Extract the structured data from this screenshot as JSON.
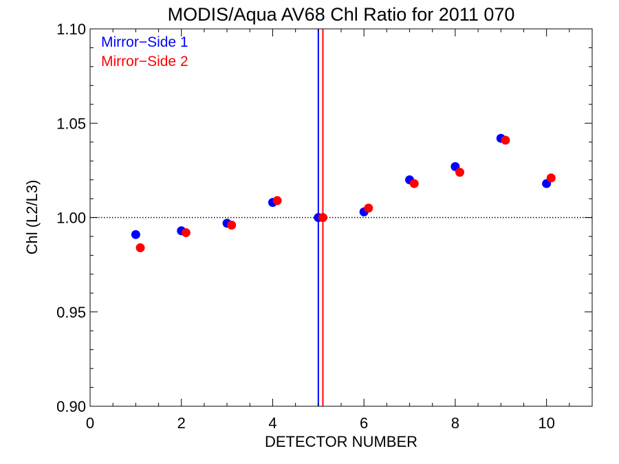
{
  "chart_data": {
    "type": "scatter",
    "title": "MODIS/Aqua AV68 Chl Ratio for 2011 070",
    "xlabel": "DETECTOR NUMBER",
    "ylabel": "Chl (L2/L3)",
    "xlim": [
      0,
      11
    ],
    "ylim": [
      0.9,
      1.1
    ],
    "xticks": [
      0,
      2,
      4,
      6,
      8,
      10
    ],
    "xtick_labels": [
      "0",
      "2",
      "4",
      "6",
      "8",
      "10"
    ],
    "yticks": [
      0.9,
      0.95,
      1.0,
      1.05,
      1.1
    ],
    "ytick_labels": [
      "0.90",
      "0.95",
      "1.00",
      "1.05",
      "1.10"
    ],
    "reference_line_y": 1.0,
    "legend_position": "top-left",
    "series": [
      {
        "name": "Mirror−Side 1",
        "color": "#0000ff",
        "vertical_line_x": 5.0,
        "points": [
          {
            "x": 1,
            "y": 0.991
          },
          {
            "x": 2,
            "y": 0.993
          },
          {
            "x": 3,
            "y": 0.997
          },
          {
            "x": 4,
            "y": 1.008
          },
          {
            "x": 5,
            "y": 1.0
          },
          {
            "x": 6,
            "y": 1.003
          },
          {
            "x": 7,
            "y": 1.02
          },
          {
            "x": 8,
            "y": 1.027
          },
          {
            "x": 9,
            "y": 1.042
          },
          {
            "x": 10,
            "y": 1.018
          }
        ]
      },
      {
        "name": "Mirror−Side 2",
        "color": "#ff0000",
        "vertical_line_x": 5.1,
        "points": [
          {
            "x": 1.1,
            "y": 0.984
          },
          {
            "x": 2.1,
            "y": 0.992
          },
          {
            "x": 3.1,
            "y": 0.996
          },
          {
            "x": 4.1,
            "y": 1.009
          },
          {
            "x": 5.1,
            "y": 1.0
          },
          {
            "x": 6.1,
            "y": 1.005
          },
          {
            "x": 7.1,
            "y": 1.018
          },
          {
            "x": 8.1,
            "y": 1.024
          },
          {
            "x": 9.1,
            "y": 1.041
          },
          {
            "x": 10.1,
            "y": 1.021
          }
        ]
      }
    ]
  }
}
